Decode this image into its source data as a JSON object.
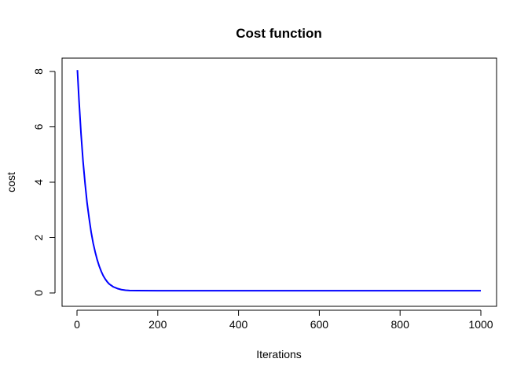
{
  "chart_data": {
    "type": "line",
    "title": "Cost function",
    "xlabel": "Iterations",
    "ylabel": "cost",
    "xlim": [
      0,
      1000
    ],
    "ylim": [
      0,
      8
    ],
    "x_ticks": [
      0,
      200,
      400,
      600,
      800,
      1000
    ],
    "y_ticks": [
      0,
      2,
      4,
      6,
      8
    ],
    "grid": false,
    "series": [
      {
        "color": "#0000ff",
        "x": [
          1,
          5,
          10,
          15,
          20,
          25,
          30,
          35,
          40,
          45,
          50,
          55,
          60,
          65,
          70,
          75,
          80,
          90,
          100,
          110,
          120,
          130,
          150,
          200,
          300,
          400,
          500,
          600,
          700,
          800,
          900,
          1000
        ],
        "y": [
          8.05,
          6.95,
          5.75,
          4.75,
          3.95,
          3.25,
          2.7,
          2.2,
          1.8,
          1.48,
          1.2,
          0.97,
          0.78,
          0.62,
          0.5,
          0.4,
          0.32,
          0.22,
          0.16,
          0.12,
          0.1,
          0.09,
          0.085,
          0.08,
          0.08,
          0.08,
          0.08,
          0.08,
          0.08,
          0.08,
          0.08,
          0.08
        ]
      }
    ]
  }
}
